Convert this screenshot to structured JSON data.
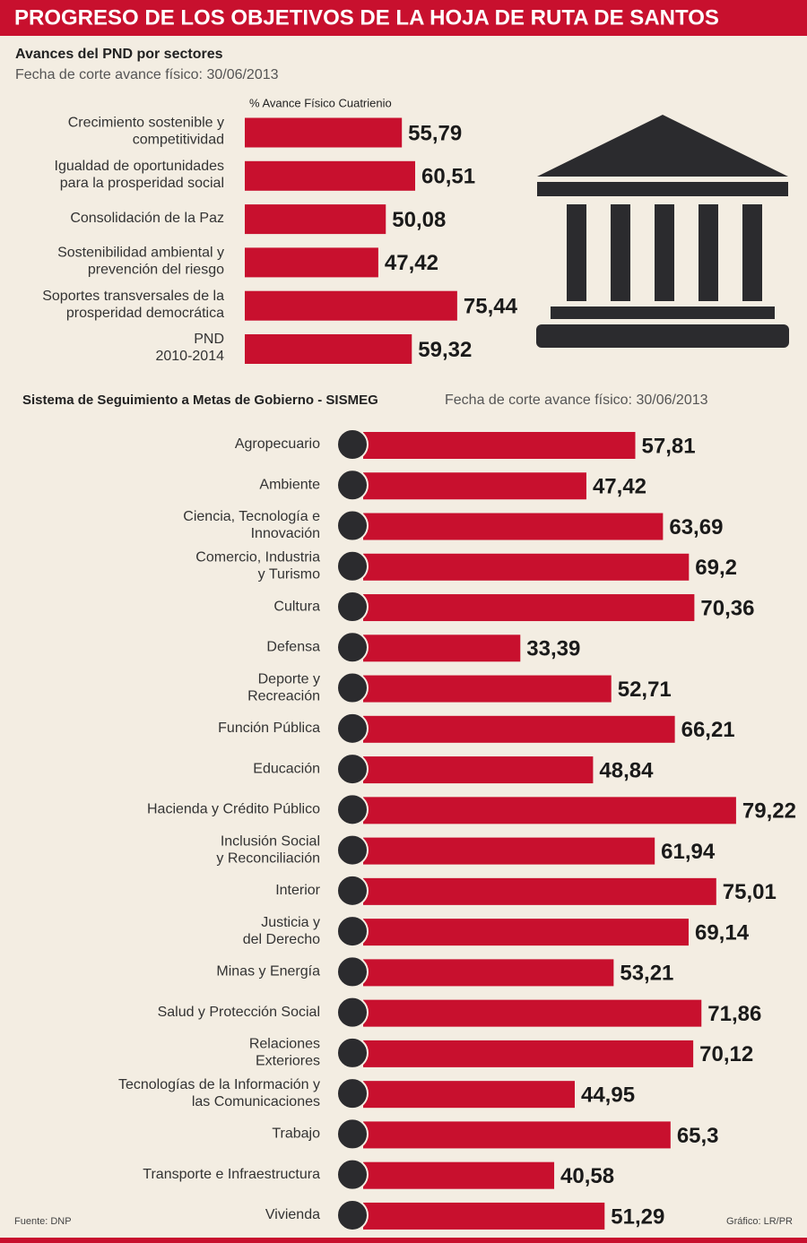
{
  "title": "PROGRESO DE LOS OBJETIVOS DE LA HOJA DE RUTA DE SANTOS",
  "chart_data": [
    {
      "type": "bar",
      "orientation": "horizontal",
      "title": "Avances del PND por sectores",
      "subtitle": "Fecha de corte avance físico: 30/06/2013",
      "value_axis_label": "% Avance Físico Cuatrienio",
      "categories": [
        [
          "Crecimiento sostenible y",
          "competitividad"
        ],
        [
          "Igualdad de oportunidades",
          "para la prosperidad social"
        ],
        [
          "Consolidación de la Paz"
        ],
        [
          "Sostenibilidad ambiental y",
          "prevención del riesgo"
        ],
        [
          "Soportes transversales  de la",
          "prosperidad democrática"
        ],
        [
          "PND",
          "2010-2014"
        ]
      ],
      "values": [
        55.79,
        60.51,
        50.08,
        47.42,
        75.44,
        59.32
      ],
      "value_labels": [
        "55,79",
        "60,51",
        "50,08",
        "47,42",
        "75,44",
        "59,32"
      ],
      "color": "#c8102e"
    },
    {
      "type": "bar",
      "orientation": "horizontal",
      "title": "Sistema de Seguimiento a Metas de Gobierno - SISMEG",
      "subtitle": "Fecha de corte avance físico: 30/06/2013",
      "categories": [
        [
          "Agropecuario"
        ],
        [
          "Ambiente"
        ],
        [
          "Ciencia, Tecnología e",
          "Innovación"
        ],
        [
          "Comercio, Industria",
          "y Turismo"
        ],
        [
          "Cultura"
        ],
        [
          "Defensa"
        ],
        [
          "Deporte y",
          "Recreación"
        ],
        [
          "Función Pública"
        ],
        [
          "Educación"
        ],
        [
          "Hacienda y Crédito Público"
        ],
        [
          "Inclusión Social",
          "y Reconciliación"
        ],
        [
          "Interior"
        ],
        [
          "Justicia y",
          "del Derecho"
        ],
        [
          "Minas y Energía"
        ],
        [
          "Salud y Protección Social"
        ],
        [
          "Relaciones",
          "Exteriores"
        ],
        [
          "Tecnologías de la Información y",
          "las Comunicaciones"
        ],
        [
          "Trabajo"
        ],
        [
          "Transporte e Infraestructura"
        ],
        [
          "Vivienda"
        ]
      ],
      "values": [
        57.81,
        47.42,
        63.69,
        69.2,
        70.36,
        33.39,
        52.71,
        66.21,
        48.84,
        79.22,
        61.94,
        75.01,
        69.14,
        53.21,
        71.86,
        70.12,
        44.95,
        65.3,
        40.58,
        51.29
      ],
      "value_labels": [
        "57,81",
        "47,42",
        "63,69",
        "69,2",
        "70,36",
        "33,39",
        "52,71",
        "66,21",
        "48,84",
        "79,22",
        "61,94",
        "75,01",
        "69,14",
        "53,21",
        "71,86",
        "70,12",
        "44,95",
        "65,3",
        "40,58",
        "51,29"
      ],
      "color": "#c8102e"
    }
  ],
  "source": "Fuente: DNP",
  "credit": "Gráfico: LR/PR"
}
